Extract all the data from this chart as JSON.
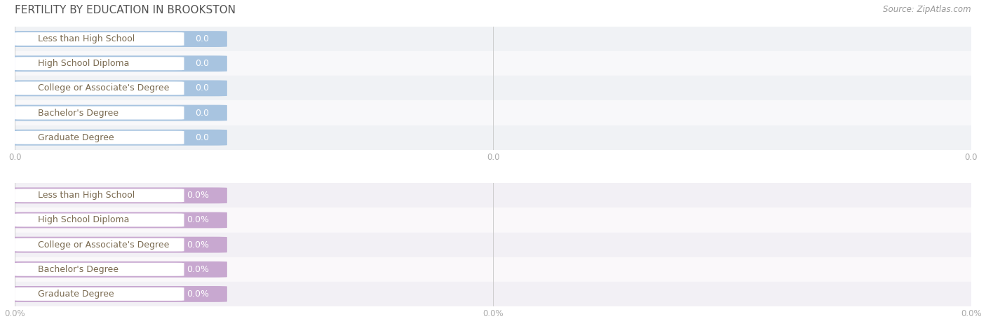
{
  "title": "FERTILITY BY EDUCATION IN BROOKSTON",
  "source": "Source: ZipAtlas.com",
  "categories": [
    "Less than High School",
    "High School Diploma",
    "College or Associate's Degree",
    "Bachelor's Degree",
    "Graduate Degree"
  ],
  "values_top": [
    0.0,
    0.0,
    0.0,
    0.0,
    0.0
  ],
  "values_bottom": [
    0.0,
    0.0,
    0.0,
    0.0,
    0.0
  ],
  "bar_color_top": "#a8c4e0",
  "bar_color_bottom": "#c8a8d0",
  "label_text_color_top": "#7a6a50",
  "label_text_color_bottom": "#7a6a50",
  "value_color_top": "#8aaacc",
  "value_color_bottom": "#b090c0",
  "row_bg": "#f0f2f5",
  "row_bg2": "#f8f8fa",
  "row_bg_bottom": "#f2f0f5",
  "row_bg2_bottom": "#faf8fa",
  "tick_color": "#aaaaaa",
  "title_color": "#555555",
  "title_fontsize": 11,
  "source_fontsize": 8.5,
  "label_fontsize": 9,
  "value_fontsize": 9,
  "tick_fontsize": 8.5,
  "figsize": [
    14.06,
    4.75
  ]
}
